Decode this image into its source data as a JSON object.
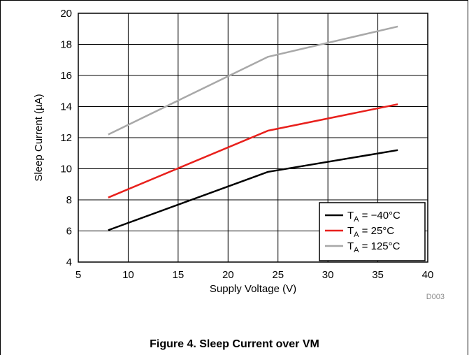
{
  "chart_data": {
    "type": "line",
    "xlabel": "Supply Voltage (V)",
    "ylabel": "Sleep Current (µA)",
    "xlim": [
      5,
      40
    ],
    "ylim": [
      4,
      20
    ],
    "xticks": [
      5,
      10,
      15,
      20,
      25,
      30,
      35,
      40
    ],
    "yticks": [
      4,
      6,
      8,
      10,
      12,
      14,
      16,
      18,
      20
    ],
    "grid": true,
    "legend_position": "bottom-right",
    "series": [
      {
        "name": "T_A = −40°C",
        "label_main": "T",
        "label_sub": "A",
        "label_rest": " = −40°C",
        "color": "#000000",
        "x": [
          8,
          24,
          37
        ],
        "y": [
          6.05,
          9.8,
          11.2
        ]
      },
      {
        "name": "T_A = 25°C",
        "label_main": "T",
        "label_sub": "A",
        "label_rest": " = 25°C",
        "color": "#e8201c",
        "x": [
          8,
          24,
          37
        ],
        "y": [
          8.15,
          12.45,
          14.15
        ]
      },
      {
        "name": "T_A = 125°C",
        "label_main": "T",
        "label_sub": "A",
        "label_rest": " = 125°C",
        "color": "#a8a8a8",
        "x": [
          8,
          24,
          37
        ],
        "y": [
          12.2,
          17.2,
          19.15
        ]
      }
    ],
    "figure_code": "D003"
  },
  "caption": "Figure 4. Sleep Current over VM"
}
